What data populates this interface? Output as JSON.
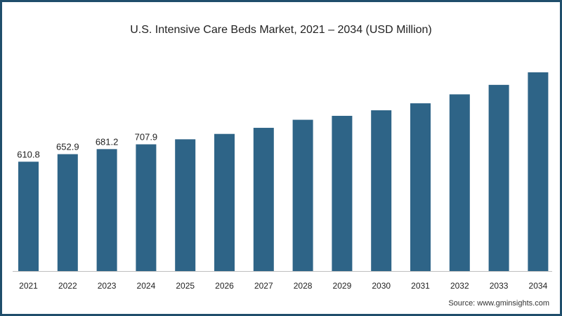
{
  "chart_data": {
    "type": "bar",
    "title": "U.S. Intensive Care Beds Market, 2021 – 2034 (USD Million)",
    "categories": [
      "2021",
      "2022",
      "2023",
      "2024",
      "2025",
      "2026",
      "2027",
      "2028",
      "2029",
      "2030",
      "2031",
      "2032",
      "2033",
      "2034"
    ],
    "values": [
      610.8,
      652.9,
      681.2,
      707.9,
      736,
      766,
      800,
      845,
      867,
      898,
      937,
      987,
      1040,
      1110
    ],
    "data_labels": [
      "610.8",
      "652.9",
      "681.2",
      "707.9",
      "",
      "",
      "",
      "",
      "",
      "",
      "",
      "",
      "",
      ""
    ],
    "ylim": [
      0,
      1110
    ],
    "xlabel": "",
    "ylabel": "",
    "grid": false,
    "legend": "none",
    "bar_color": "#2e6487",
    "source": "Source: www.gminsights.com"
  }
}
